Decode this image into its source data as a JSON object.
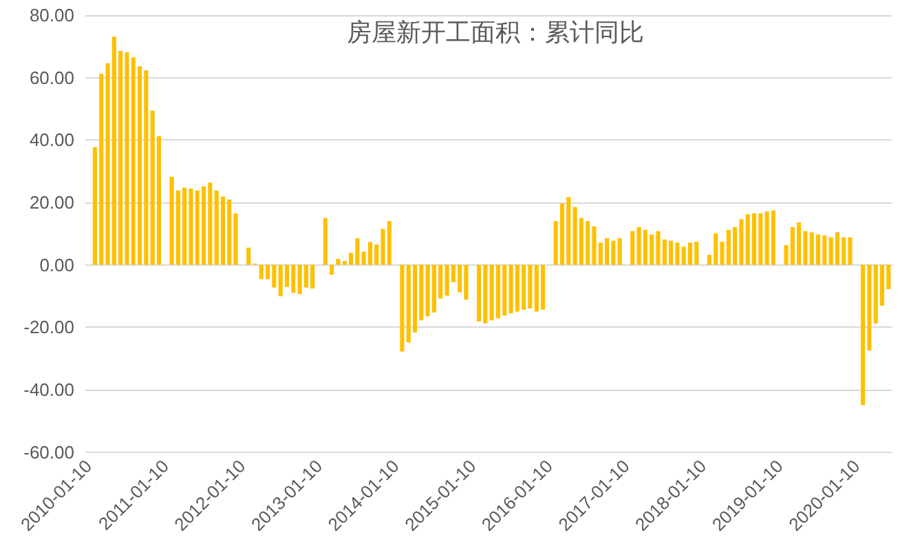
{
  "chart_data": {
    "type": "bar",
    "title": "房屋新开工面积：累计同比",
    "categories": [
      "2010-01-10",
      null,
      null,
      null,
      null,
      null,
      null,
      null,
      null,
      null,
      null,
      null,
      "2011-01-10",
      null,
      null,
      null,
      null,
      null,
      null,
      null,
      null,
      null,
      null,
      null,
      "2012-01-10",
      null,
      null,
      null,
      null,
      null,
      null,
      null,
      null,
      null,
      null,
      null,
      "2013-01-10",
      null,
      null,
      null,
      null,
      null,
      null,
      null,
      null,
      null,
      null,
      null,
      "2014-01-10",
      null,
      null,
      null,
      null,
      null,
      null,
      null,
      null,
      null,
      null,
      null,
      "2015-01-10",
      null,
      null,
      null,
      null,
      null,
      null,
      null,
      null,
      null,
      null,
      null,
      "2016-01-10",
      null,
      null,
      null,
      null,
      null,
      null,
      null,
      null,
      null,
      null,
      null,
      "2017-01-10",
      null,
      null,
      null,
      null,
      null,
      null,
      null,
      null,
      null,
      null,
      null,
      "2018-01-10",
      null,
      null,
      null,
      null,
      null,
      null,
      null,
      null,
      null,
      null,
      null,
      "2019-01-10",
      null,
      null,
      null,
      null,
      null,
      null,
      null,
      null,
      null,
      null,
      null,
      "2020-01-10",
      null,
      null,
      null,
      null,
      null
    ],
    "values": [
      null,
      37.7,
      61.2,
      64.6,
      73.1,
      68.5,
      68.1,
      66.5,
      63.6,
      62.3,
      49.4,
      41.2,
      null,
      28.2,
      23.8,
      24.7,
      24.4,
      23.8,
      25.1,
      26.3,
      23.8,
      21.9,
      20.9,
      16.5,
      null,
      5.5,
      0.4,
      -4.6,
      -4.6,
      -7.3,
      -10.1,
      -7.1,
      -9.0,
      -9.4,
      -7.3,
      -7.6,
      null,
      15.0,
      -3.2,
      1.9,
      1.2,
      3.8,
      8.5,
      4.2,
      7.3,
      6.5,
      11.5,
      14.0,
      null,
      -27.8,
      -24.9,
      -21.7,
      -17.8,
      -16.5,
      -15.3,
      -10.8,
      -9.9,
      -5.6,
      -8.8,
      -11.2,
      null,
      -18.2,
      -18.8,
      -17.8,
      -17.2,
      -16.3,
      -15.6,
      -15.0,
      -14.4,
      -14.0,
      -15.0,
      -14.4,
      null,
      14.0,
      19.6,
      21.7,
      18.5,
      15.0,
      14.0,
      12.3,
      7.1,
      8.5,
      7.7,
      8.5,
      null,
      10.8,
      12.1,
      11.2,
      9.7,
      10.8,
      8.1,
      7.7,
      7.1,
      5.8,
      7.1,
      7.4,
      null,
      3.2,
      10.1,
      7.4,
      11.2,
      12.1,
      14.6,
      16.2,
      16.5,
      16.5,
      17.1,
      17.4,
      null,
      6.3,
      12.1,
      13.6,
      10.8,
      10.4,
      9.7,
      9.4,
      8.8,
      10.4,
      8.8,
      8.8,
      null,
      -45.0,
      -27.5,
      -18.8,
      -13.1,
      -7.8
    ],
    "color": "#ffc000",
    "ylim": [
      -60,
      80
    ],
    "yticks": [
      {
        "value": -60,
        "label": "-60.00"
      },
      {
        "value": -40,
        "label": "-40.00"
      },
      {
        "value": -20,
        "label": "-20.00"
      },
      {
        "value": 0,
        "label": "0.00"
      },
      {
        "value": 20,
        "label": "20.00"
      },
      {
        "value": 40,
        "label": "40.00"
      },
      {
        "value": 60,
        "label": "60.00"
      },
      {
        "value": 80,
        "label": "80.00"
      }
    ],
    "grid": "y"
  }
}
